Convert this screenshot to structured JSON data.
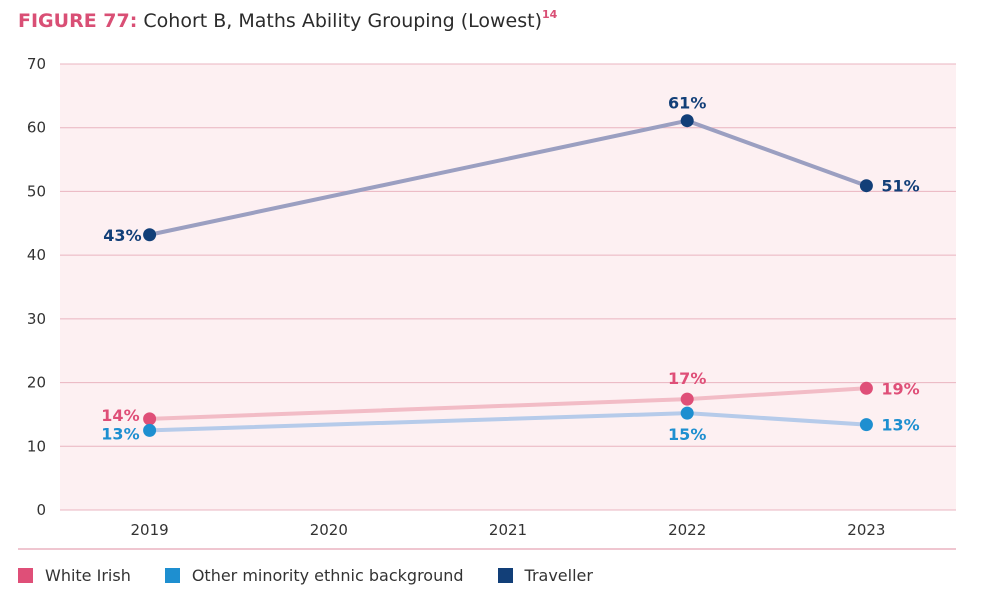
{
  "title": {
    "figure_label": "FIGURE 77:",
    "text": "Cohort B, Maths Ability Grouping (Lowest)",
    "superscript": "14"
  },
  "colors": {
    "accent": "#d94f75",
    "plot_bg": "#fdf0f2",
    "grid": "#eab4c0",
    "white_irish": "#df4f78",
    "white_irish_line": "#f2bcc6",
    "other_minority": "#1e8fd0",
    "other_minority_line": "#b6cbea",
    "traveller": "#123f78",
    "traveller_line": "#9b9fc1"
  },
  "chart_data": {
    "type": "line",
    "title": "Cohort B, Maths Ability Grouping (Lowest)",
    "xlabel": "",
    "ylabel": "",
    "categories": [
      "2019",
      "2020",
      "2021",
      "2022",
      "2023"
    ],
    "ylim": [
      0,
      70
    ],
    "yticks": [
      0,
      10,
      20,
      30,
      40,
      50,
      60,
      70
    ],
    "grid": true,
    "legend_position": "bottom",
    "series": [
      {
        "name": "White Irish",
        "key": "white_irish",
        "points": [
          {
            "x": "2019",
            "y": 14.3,
            "label": "14%"
          },
          {
            "x": "2022",
            "y": 17.4,
            "label": "17%"
          },
          {
            "x": "2023",
            "y": 19.1,
            "label": "19%"
          }
        ]
      },
      {
        "name": "Other minority ethnic background",
        "key": "other_minority",
        "points": [
          {
            "x": "2019",
            "y": 12.5,
            "label": "13%"
          },
          {
            "x": "2022",
            "y": 15.2,
            "label": "15%"
          },
          {
            "x": "2023",
            "y": 13.4,
            "label": "13%"
          }
        ]
      },
      {
        "name": "Traveller",
        "key": "traveller",
        "points": [
          {
            "x": "2019",
            "y": 43.2,
            "label": "43%"
          },
          {
            "x": "2022",
            "y": 61.1,
            "label": "61%"
          },
          {
            "x": "2023",
            "y": 50.9,
            "label": "51%"
          }
        ]
      }
    ]
  },
  "legend": [
    {
      "label": "White Irish"
    },
    {
      "label": "Other minority ethnic background"
    },
    {
      "label": "Traveller"
    }
  ]
}
